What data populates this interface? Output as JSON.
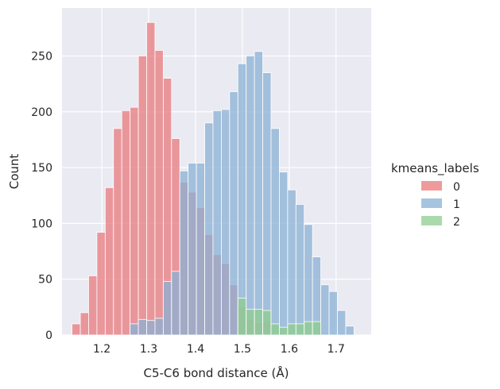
{
  "chart_data": {
    "type": "histogram",
    "xlabel": "C5-C6 bond distance (Å)",
    "ylabel": "Count",
    "xlim": [
      1.115,
      1.775
    ],
    "ylim": [
      0,
      293
    ],
    "xticks": [
      1.2,
      1.3,
      1.4,
      1.5,
      1.6,
      1.7
    ],
    "yticks": [
      0,
      50,
      100,
      150,
      200,
      250
    ],
    "grid": true,
    "bin_width": 0.0177,
    "legend": {
      "title": "kmeans_labels",
      "placement": "right-outside",
      "entries": [
        "0",
        "1",
        "2"
      ]
    },
    "series": [
      {
        "name": "0",
        "color": "#e8797d",
        "bins": [
          {
            "x": 1.1364,
            "count": 10
          },
          {
            "x": 1.1541,
            "count": 20
          },
          {
            "x": 1.1718,
            "count": 53
          },
          {
            "x": 1.1895,
            "count": 92
          },
          {
            "x": 1.2072,
            "count": 132
          },
          {
            "x": 1.2249,
            "count": 185
          },
          {
            "x": 1.2426,
            "count": 201
          },
          {
            "x": 1.2603,
            "count": 204
          },
          {
            "x": 1.278,
            "count": 250
          },
          {
            "x": 1.2957,
            "count": 280
          },
          {
            "x": 1.3134,
            "count": 255
          },
          {
            "x": 1.3311,
            "count": 230
          },
          {
            "x": 1.3488,
            "count": 176
          },
          {
            "x": 1.3665,
            "count": 137
          },
          {
            "x": 1.3842,
            "count": 128
          },
          {
            "x": 1.4019,
            "count": 114
          },
          {
            "x": 1.4196,
            "count": 90
          },
          {
            "x": 1.4373,
            "count": 72
          },
          {
            "x": 1.455,
            "count": 64
          },
          {
            "x": 1.4727,
            "count": 45
          },
          {
            "x": 1.4904,
            "count": 25
          },
          {
            "x": 1.5081,
            "count": 14
          },
          {
            "x": 1.5258,
            "count": 11
          },
          {
            "x": 1.5435,
            "count": 12
          },
          {
            "x": 1.5612,
            "count": 0
          }
        ]
      },
      {
        "name": "1",
        "color": "#8ab0d4",
        "bins": [
          {
            "x": 1.2603,
            "count": 10
          },
          {
            "x": 1.278,
            "count": 14
          },
          {
            "x": 1.2957,
            "count": 13
          },
          {
            "x": 1.3134,
            "count": 15
          },
          {
            "x": 1.3311,
            "count": 48
          },
          {
            "x": 1.3488,
            "count": 57
          },
          {
            "x": 1.3665,
            "count": 147
          },
          {
            "x": 1.3842,
            "count": 154
          },
          {
            "x": 1.4019,
            "count": 154
          },
          {
            "x": 1.4196,
            "count": 190
          },
          {
            "x": 1.4373,
            "count": 201
          },
          {
            "x": 1.455,
            "count": 202
          },
          {
            "x": 1.4727,
            "count": 218
          },
          {
            "x": 1.4904,
            "count": 243
          },
          {
            "x": 1.5081,
            "count": 250
          },
          {
            "x": 1.5258,
            "count": 254
          },
          {
            "x": 1.5435,
            "count": 235
          },
          {
            "x": 1.5612,
            "count": 185
          },
          {
            "x": 1.5789,
            "count": 146
          },
          {
            "x": 1.5966,
            "count": 130
          },
          {
            "x": 1.6143,
            "count": 117
          },
          {
            "x": 1.632,
            "count": 99
          },
          {
            "x": 1.6497,
            "count": 70
          },
          {
            "x": 1.6674,
            "count": 45
          },
          {
            "x": 1.6851,
            "count": 39
          },
          {
            "x": 1.7028,
            "count": 22
          },
          {
            "x": 1.7205,
            "count": 8
          }
        ]
      },
      {
        "name": "2",
        "color": "#8fce8e",
        "bins": [
          {
            "x": 1.4904,
            "count": 33
          },
          {
            "x": 1.5081,
            "count": 23
          },
          {
            "x": 1.5258,
            "count": 23
          },
          {
            "x": 1.5435,
            "count": 22
          },
          {
            "x": 1.5612,
            "count": 10
          },
          {
            "x": 1.5789,
            "count": 7
          },
          {
            "x": 1.5966,
            "count": 10
          },
          {
            "x": 1.6143,
            "count": 10
          },
          {
            "x": 1.632,
            "count": 12
          },
          {
            "x": 1.6497,
            "count": 12
          }
        ]
      }
    ]
  }
}
